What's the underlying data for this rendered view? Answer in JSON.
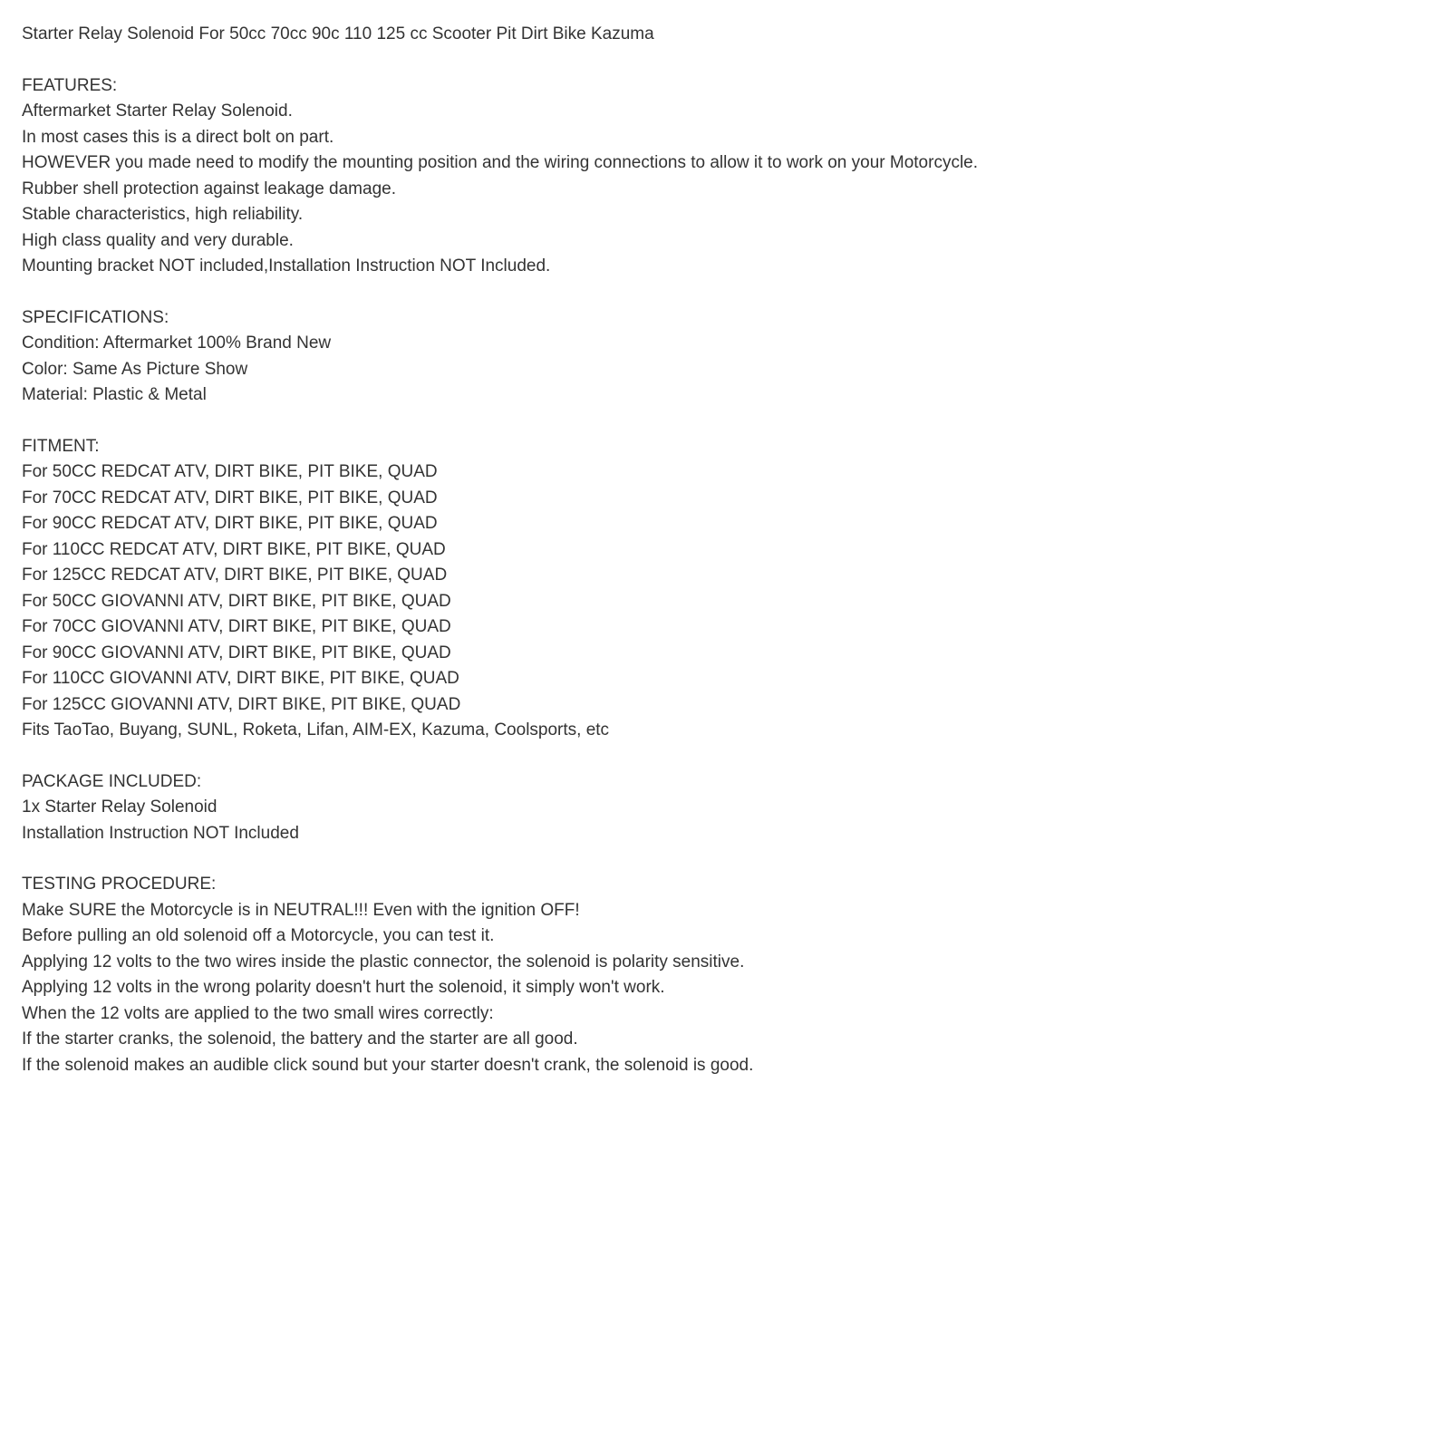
{
  "title": "Starter Relay Solenoid For 50cc 70cc 90c 110 125 cc Scooter Pit Dirt Bike Kazuma",
  "features": {
    "heading": "FEATURES:",
    "lines": [
      "Aftermarket Starter Relay Solenoid.",
      "In most cases this is a direct bolt on part.",
      "HOWEVER you made need to modify the mounting position and the wiring connections to allow it to work on your Motorcycle.",
      "Rubber shell protection against leakage damage.",
      "Stable characteristics, high reliability.",
      "High class quality and very durable.",
      "Mounting bracket NOT included,Installation Instruction NOT Included."
    ]
  },
  "specifications": {
    "heading": "SPECIFICATIONS:",
    "lines": [
      "Condition: Aftermarket 100% Brand New",
      "Color: Same As Picture Show",
      "Material: Plastic & Metal"
    ]
  },
  "fitment": {
    "heading": "FITMENT:",
    "lines": [
      "For 50CC REDCAT ATV, DIRT BIKE, PIT BIKE, QUAD",
      "For 70CC REDCAT ATV, DIRT BIKE, PIT BIKE, QUAD",
      "For 90CC REDCAT ATV, DIRT BIKE, PIT BIKE, QUAD",
      "For 110CC REDCAT ATV, DIRT BIKE, PIT BIKE, QUAD",
      "For 125CC REDCAT ATV, DIRT BIKE, PIT BIKE, QUAD",
      "For 50CC GIOVANNI ATV, DIRT BIKE, PIT BIKE, QUAD",
      "For 70CC GIOVANNI ATV, DIRT BIKE, PIT BIKE, QUAD",
      "For 90CC GIOVANNI ATV, DIRT BIKE, PIT BIKE, QUAD",
      "For 110CC GIOVANNI ATV, DIRT BIKE, PIT BIKE, QUAD",
      "For 125CC GIOVANNI ATV, DIRT BIKE, PIT BIKE, QUAD",
      "Fits TaoTao, Buyang, SUNL, Roketa, Lifan, AIM-EX, Kazuma, Coolsports, etc"
    ]
  },
  "package": {
    "heading": "PACKAGE INCLUDED:",
    "lines": [
      "1x Starter Relay Solenoid",
      "Installation Instruction NOT Included"
    ]
  },
  "testing": {
    "heading": "TESTING PROCEDURE:",
    "lines": [
      "Make SURE the Motorcycle is in NEUTRAL!!! Even with the ignition OFF!",
      "Before pulling an old solenoid off a Motorcycle, you can test it.",
      "Applying 12 volts to the two wires inside the plastic connector, the solenoid is polarity sensitive.",
      "Applying 12 volts in the wrong polarity doesn't hurt the solenoid, it simply won't work.",
      "When the 12 volts are applied to the two small wires correctly:",
      "If the starter cranks, the solenoid, the battery and the starter are all good.",
      "If the solenoid makes an audible click sound but your starter doesn't crank, the solenoid is good."
    ]
  }
}
